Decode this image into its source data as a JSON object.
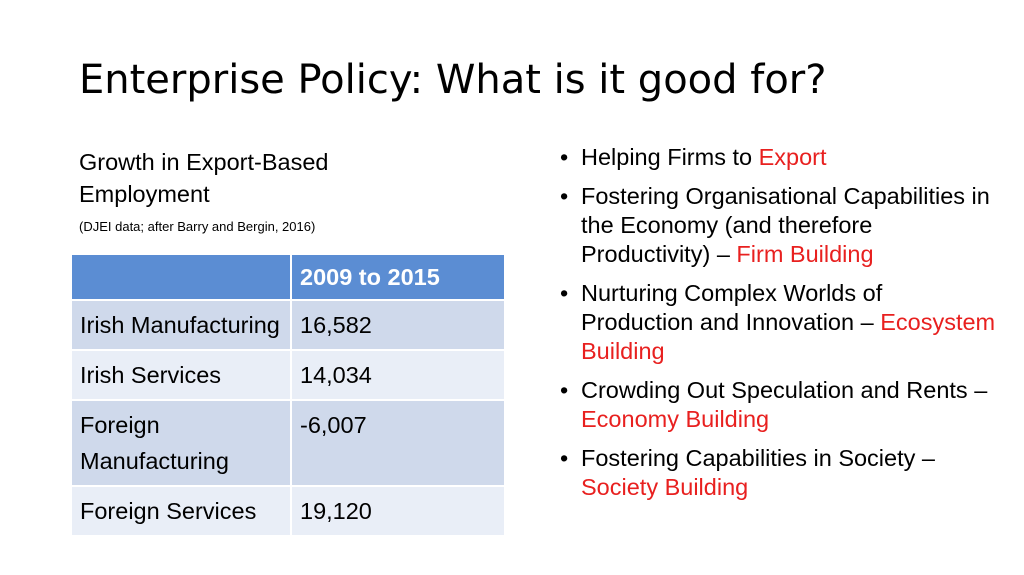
{
  "slide": {
    "title": "Enterprise Policy: What is it good for?"
  },
  "left": {
    "heading": "Growth in Export-Based Employment",
    "source_note": "(DJEI data; after Barry and Bergin, 2016)"
  },
  "table": {
    "header": [
      "",
      "2009 to 2015"
    ],
    "rows": [
      {
        "label": "Irish Manufacturing",
        "value": "16,582"
      },
      {
        "label": "Irish Services",
        "value": "14,034"
      },
      {
        "label": "Foreign Manufacturing",
        "value": "-6,007"
      },
      {
        "label": "Foreign Services",
        "value": "19,120"
      }
    ]
  },
  "bullets": [
    {
      "text": "Helping Firms to ",
      "highlight": "Export"
    },
    {
      "text": "Fostering Organisational Capabilities in the Economy (and therefore Productivity) – ",
      "highlight": "Firm Building"
    },
    {
      "text": "Nurturing Complex Worlds of Production and Innovation – ",
      "highlight": "Ecosystem Building"
    },
    {
      "text": "Crowding Out Speculation and Rents – ",
      "highlight": "Economy Building"
    },
    {
      "text": "Fostering Capabilities in Society – ",
      "highlight": "Society Building"
    }
  ],
  "colors": {
    "highlight": "#e8201f",
    "table_header": "#5b8dd3",
    "table_row_dark": "#cfd9eb",
    "table_row_light": "#e9eef7"
  }
}
